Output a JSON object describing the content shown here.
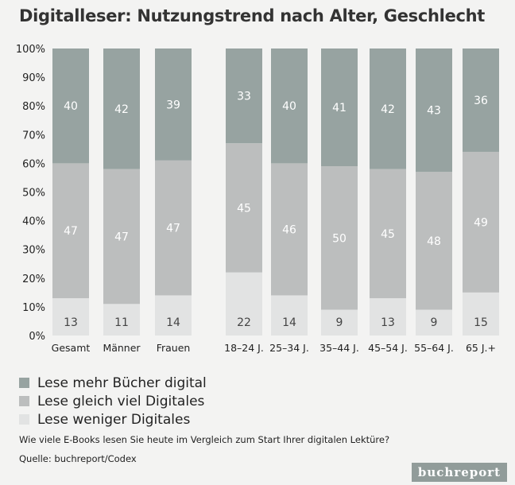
{
  "title": "Digitalleser: Nutzungstrend nach Alter, Geschlecht",
  "question": "Wie viele E-Books lesen Sie heute im Vergleich zum Start Ihrer digitalen Lektüre?",
  "source": "Quelle: buchreport/Codex",
  "brand": "buchreport",
  "colors": {
    "mehr": "#97a3a1",
    "gleich": "#bcbebe",
    "weniger": "#e2e3e3",
    "bar_text": "#ffffff",
    "bar_text_light": "#444444"
  },
  "legend": [
    {
      "label": "Lese mehr Bücher digital",
      "color": "#97a3a1"
    },
    {
      "label": "Lese gleich viel Digitales",
      "color": "#bcbebe"
    },
    {
      "label": "Lese weniger Digitales",
      "color": "#e2e3e3"
    }
  ],
  "chart_data": {
    "type": "bar",
    "stacked": true,
    "categories": [
      "Gesamt",
      "Männer",
      "Frauen",
      "18–24 J.",
      "25–34 J.",
      "35–44 J.",
      "45–54 J.",
      "55–64 J.",
      "65 J.+"
    ],
    "series": [
      {
        "name": "Lese weniger Digitales",
        "values": [
          13,
          11,
          14,
          22,
          14,
          9,
          13,
          9,
          15
        ]
      },
      {
        "name": "Lese gleich viel Digitales",
        "values": [
          47,
          47,
          47,
          45,
          46,
          50,
          45,
          48,
          49
        ]
      },
      {
        "name": "Lese mehr Bücher digital",
        "values": [
          40,
          42,
          39,
          33,
          40,
          41,
          42,
          43,
          36
        ]
      }
    ],
    "yticks": [
      "0%",
      "10%",
      "20%",
      "30%",
      "40%",
      "50%",
      "60%",
      "70%",
      "80%",
      "90%",
      "100%"
    ],
    "ylim": [
      0,
      100
    ],
    "grid": false,
    "legend_position": "bottom-left"
  }
}
